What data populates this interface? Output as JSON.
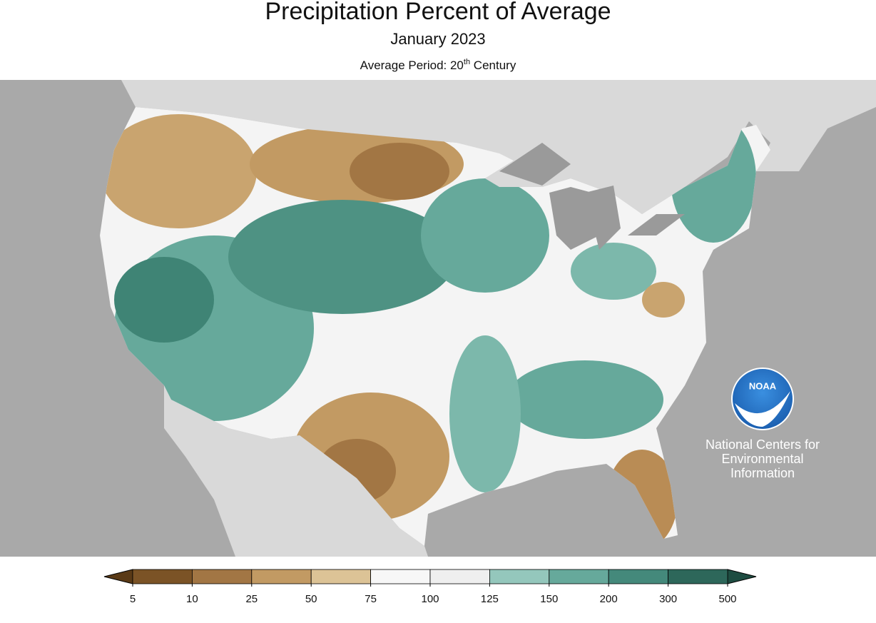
{
  "header": {
    "title": "Precipitation Percent of Average",
    "subtitle": "January 2023",
    "period": {
      "text": "Average Period: 20",
      "superscript": "th",
      "suffix": " Century"
    }
  },
  "logo": {
    "text": "NOAA"
  },
  "credit": [
    "National Centers for",
    "Environmental",
    "Information"
  ],
  "legend": {
    "ticks": [
      5,
      10,
      25,
      50,
      75,
      100,
      125,
      150,
      200,
      300,
      500
    ],
    "colors": [
      "#7b5326",
      "#a27644",
      "#c29a63",
      "#dcc396",
      "#f7f7f7",
      "#efefef",
      "#94c7bc",
      "#66a99b",
      "#44897b",
      "#2d675a"
    ],
    "under_color": "#5a3a16",
    "over_color": "#1e4c41"
  }
}
